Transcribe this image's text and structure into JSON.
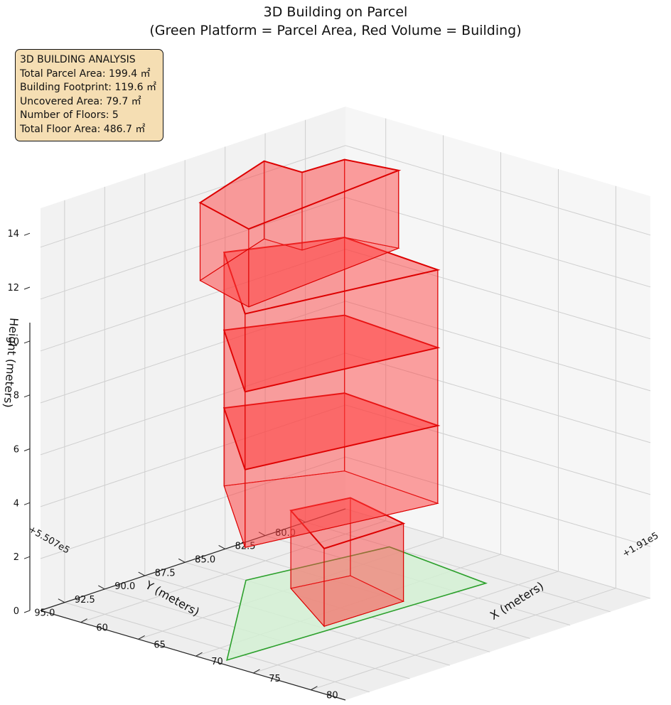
{
  "chart_data": {
    "type": "3d-polygon",
    "title": "3D Building on Parcel",
    "subtitle": "(Green Platform = Parcel Area, Red Volume = Building)",
    "xlabel": "X (meters)",
    "ylabel": "Y (meters)",
    "zlabel": "Height (meters)",
    "x_offset_label": "+1.91e5",
    "y_offset_label": "+5.507e5",
    "x_ticks": [
      "60",
      "65",
      "70",
      "75",
      "80"
    ],
    "y_ticks": [
      "80.0",
      "82.5",
      "85.0",
      "87.5",
      "90.0",
      "92.5",
      "95.0"
    ],
    "z_ticks": [
      "0",
      "2",
      "4",
      "6",
      "8",
      "10",
      "12",
      "14"
    ],
    "info_box": [
      "3D BUILDING ANALYSIS",
      "Total Parcel Area: 199.4 ㎡",
      "Building Footprint: 119.6 ㎡",
      "Uncovered Area: 79.7 ㎡",
      "Number of Floors: 5",
      "Total Floor Area: 486.7 ㎡"
    ],
    "series": [
      {
        "name": "Parcel Area",
        "color": "#2ca02c",
        "fill": "#d4f0d4",
        "polygon_xy": [
          [
            61.8,
            87.5
          ],
          [
            63.8,
            80.0
          ],
          [
            73.3,
            80.8
          ],
          [
            72.0,
            96.0
          ]
        ],
        "z": 0
      },
      {
        "name": "Building",
        "color": "#dd0000",
        "fill": "#ff4040",
        "floor_height_m": 3,
        "floors": [
          {
            "level": 1,
            "z": [
              0,
              3
            ],
            "footprint_xy": [
              [
                65.0,
                87.0
              ],
              [
                66.0,
                84.0
              ],
              [
                72.0,
                85.0
              ],
              [
                71.8,
                89.8
              ]
            ]
          },
          {
            "level": 2,
            "z": [
              3,
              6
            ],
            "footprint_xy": [
              [
                58.5,
                86.5
              ],
              [
                62.0,
                81.5
              ],
              [
                70.8,
                82.0
              ],
              [
                68.0,
                92.0
              ]
            ]
          },
          {
            "level": 3,
            "z": [
              6,
              9
            ],
            "footprint_xy": [
              [
                58.5,
                86.5
              ],
              [
                62.0,
                81.5
              ],
              [
                70.8,
                82.0
              ],
              [
                68.0,
                92.0
              ]
            ]
          },
          {
            "level": 4,
            "z": [
              9,
              12
            ],
            "footprint_xy": [
              [
                58.5,
                86.5
              ],
              [
                62.0,
                81.5
              ],
              [
                70.8,
                82.0
              ],
              [
                68.0,
                92.0
              ]
            ]
          },
          {
            "level": 5,
            "z": [
              12,
              15
            ],
            "footprint_xy": [
              [
                58.5,
                84.0
              ],
              [
                61.8,
                84.0
              ],
              [
                62.0,
                81.5
              ],
              [
                66.0,
                81.0
              ],
              [
                67.2,
                91.2
              ],
              [
                61.3,
                90.0
              ]
            ]
          }
        ]
      }
    ]
  }
}
